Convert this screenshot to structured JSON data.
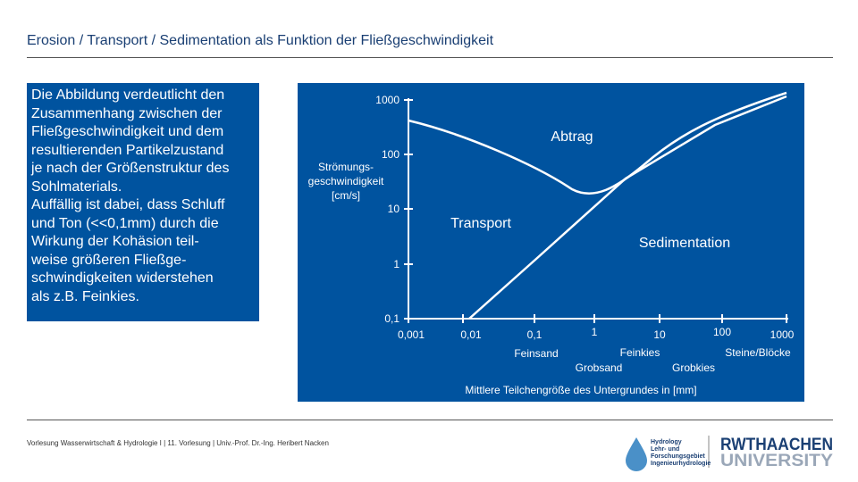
{
  "header": {
    "title": "Erosion / Transport / Sedimentation als Funktion der Fließgeschwindigkeit"
  },
  "textbox": {
    "lines": [
      "Die Abbildung verdeutlicht den",
      "Zusammenhang zwischen der",
      "Fließgeschwindigkeit und dem",
      "resultierenden Partikelzustand",
      "je nach der Größenstruktur des",
      "Sohlmaterials.",
      "Auffällig ist dabei, dass Schluff",
      "und Ton (<<0,1mm) durch die",
      "Wirkung der Kohäsion teil-",
      "weise größeren Fließge-",
      "schwindigkeiten widerstehen",
      "als z.B. Feinkies."
    ]
  },
  "figure": {
    "y_ticks": [
      "1000",
      "100",
      "10",
      "1",
      "0,1"
    ],
    "y_label": [
      "Strömungs-",
      "geschwindigkeit",
      "[cm/s]"
    ],
    "x_ticks": [
      "0,001",
      "0,01",
      "0,1",
      "1",
      "10",
      "100",
      "1000"
    ],
    "x_classes": [
      "Feinsand",
      "Grobsand",
      "Feinkies",
      "Grobkies",
      "Steine/Blöcke"
    ],
    "x_label": "Mittlere Teilchengröße des Untergrundes in [mm]",
    "regions": [
      "Abtrag",
      "Transport",
      "Sedimentation"
    ]
  },
  "footer": {
    "text": "Vorlesung Wasserwirtschaft & Hydrologie I | 11. Vorlesung | Univ.-Prof. Dr.-Ing. Heribert Nacken",
    "logo_hydro": [
      "Hydrology",
      "Lehr- und",
      "Forschungsgebiet",
      "Ingenieurhydrologie"
    ],
    "logo_rwth": [
      "RWTHAACHEN",
      "UNIVERSITY"
    ]
  }
}
